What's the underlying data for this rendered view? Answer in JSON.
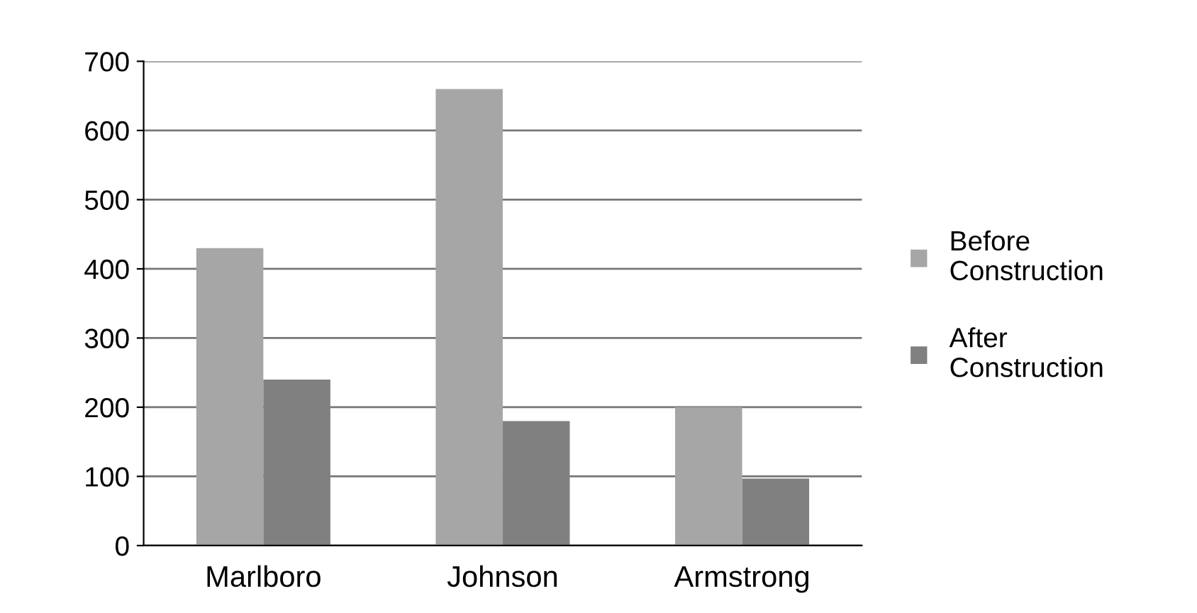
{
  "chart_data": {
    "type": "bar",
    "categories": [
      "Marlboro",
      "Johnson",
      "Armstrong"
    ],
    "series": [
      {
        "name": "Before Construction",
        "color": "#a6a6a6",
        "values": [
          430,
          660,
          200
        ]
      },
      {
        "name": "After Construction",
        "color": "#808080",
        "values": [
          240,
          180,
          97
        ]
      }
    ],
    "ylim": [
      0,
      700
    ],
    "yticks": [
      0,
      100,
      200,
      300,
      400,
      500,
      600,
      700
    ],
    "grid": "y",
    "legend": "right"
  }
}
